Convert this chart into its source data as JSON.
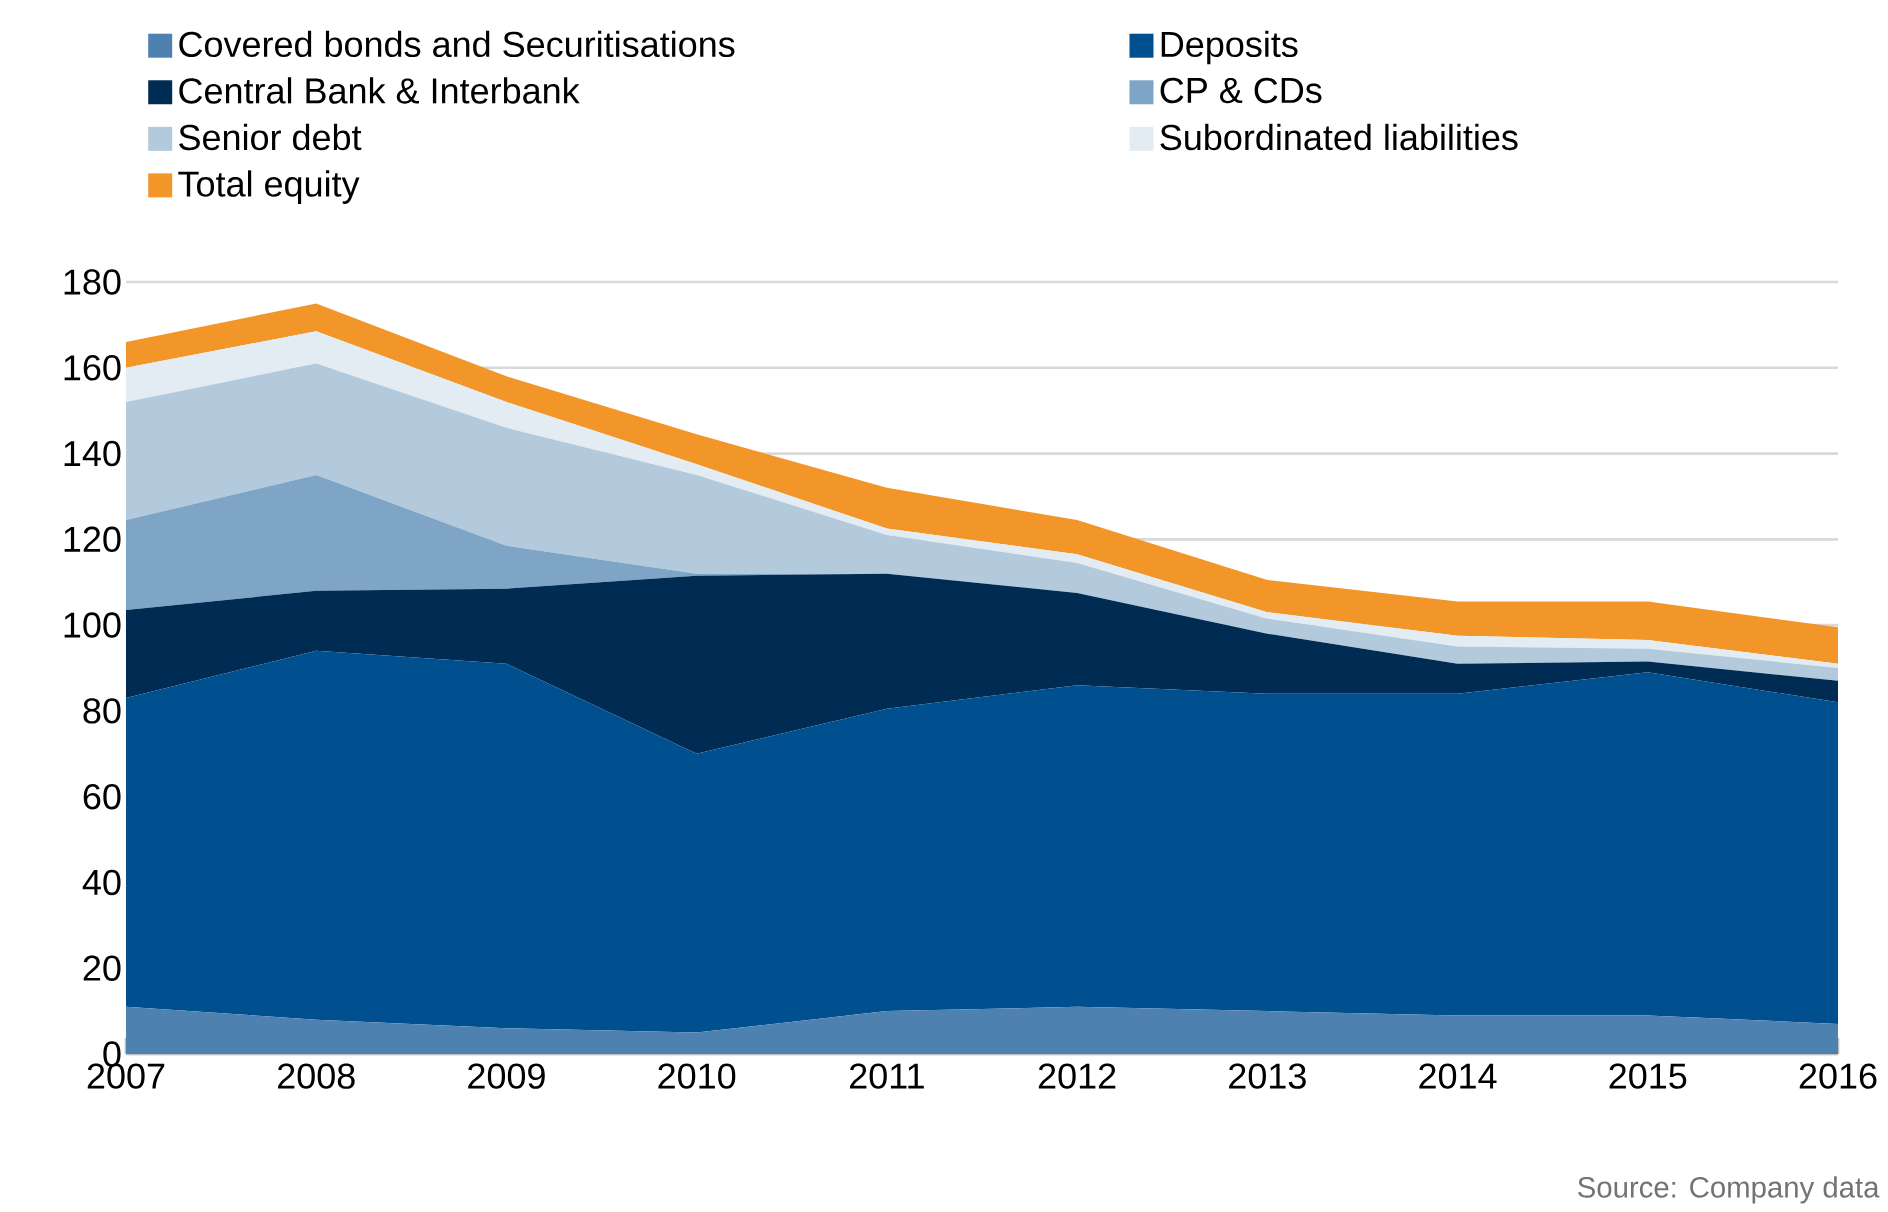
{
  "chart_data": {
    "type": "area",
    "stacked": true,
    "x": [
      2007,
      2008,
      2009,
      2010,
      2011,
      2012,
      2013,
      2014,
      2015,
      2016
    ],
    "series": [
      {
        "name": "Covered bonds and Securitisations",
        "color": "#4f81b0",
        "values": [
          11,
          8,
          6,
          5,
          10,
          11,
          10,
          9,
          9,
          7
        ]
      },
      {
        "name": "Deposits",
        "color": "#004f8f",
        "values": [
          72,
          86,
          85,
          65,
          70.5,
          75,
          74,
          75,
          80,
          75
        ]
      },
      {
        "name": "Central Bank & Interbank",
        "color": "#002b53",
        "values": [
          20.5,
          14,
          17.5,
          41.5,
          31.5,
          21.5,
          14,
          7,
          2.5,
          5
        ]
      },
      {
        "name": "CP & CDs",
        "color": "#7fa5c6",
        "values": [
          21,
          27,
          10,
          0.5,
          0,
          0,
          0,
          0,
          0,
          0
        ]
      },
      {
        "name": "Senior debt",
        "color": "#b3c9dc",
        "values": [
          27.5,
          26,
          27.5,
          23,
          9,
          7,
          3.5,
          4,
          3,
          3
        ]
      },
      {
        "name": "Subordinated liabilities",
        "color": "#e3ebf3",
        "values": [
          8,
          7.5,
          6,
          2.5,
          1.5,
          2,
          1.5,
          2.5,
          2,
          1
        ]
      },
      {
        "name": "Total equity",
        "color": "#f2962a",
        "values": [
          6,
          6.5,
          6,
          7,
          9.5,
          8,
          7.5,
          8,
          9,
          8.5
        ]
      }
    ],
    "xlim": [
      2007,
      2016
    ],
    "xticks": [
      2007,
      2008,
      2009,
      2010,
      2011,
      2012,
      2013,
      2014,
      2015,
      2016
    ],
    "ylim": [
      0,
      180
    ],
    "yticks": [
      0,
      20,
      40,
      60,
      80,
      100,
      120,
      140,
      160,
      180
    ],
    "grid": "y",
    "legend": "top",
    "annotations": [
      "Source: Company data"
    ]
  }
}
